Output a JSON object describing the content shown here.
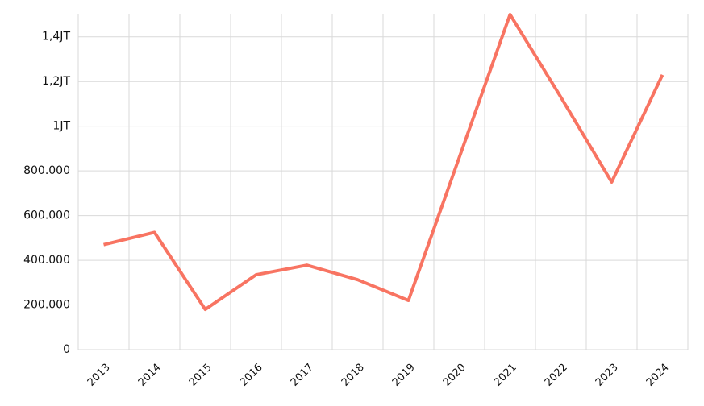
{
  "chart_data": {
    "type": "line",
    "categories": [
      "2013",
      "2014",
      "2015",
      "2016",
      "2017",
      "2018",
      "2019",
      "2020",
      "2021",
      "2022",
      "2023",
      "2024"
    ],
    "values": [
      470000,
      525000,
      180000,
      335000,
      378000,
      313000,
      220000,
      860000,
      1500000,
      1130000,
      750000,
      1230000
    ],
    "color": "#f87462",
    "ylim": [
      0,
      1500000
    ],
    "yticks": [
      0,
      {
        "value": 200000,
        "label": "200.000"
      },
      {
        "value": 400000,
        "label": "400.000"
      },
      {
        "value": 600000,
        "label": "600.000"
      },
      {
        "value": 800000,
        "label": "800.000"
      },
      {
        "value": 1000000,
        "label": "1JT"
      },
      {
        "value": 1200000,
        "label": "1,2JT"
      },
      {
        "value": 1400000,
        "label": "1,4JT"
      }
    ],
    "grid": true
  }
}
